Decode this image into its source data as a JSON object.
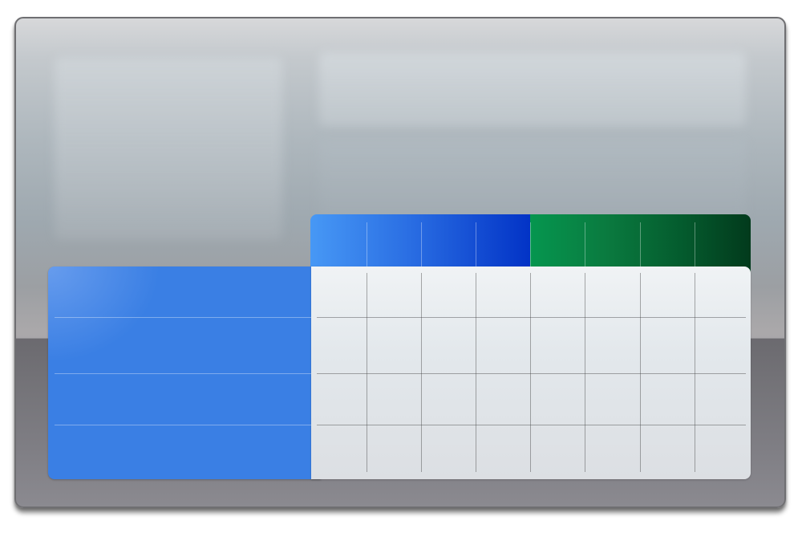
{
  "window": {
    "title": ""
  },
  "panels": {
    "sidebar_placeholder": "",
    "header_placeholder": "",
    "content_placeholder": ""
  },
  "table": {
    "column_groups": [
      {
        "name": "",
        "color_start": "#4798f5",
        "color_end": "#0233c6",
        "columns": 4
      },
      {
        "name": "",
        "color_start": "#05964f",
        "color_end": "#023a1c",
        "columns": 4
      }
    ],
    "row_header_color": "#3a7fe4",
    "rows": 4,
    "cells": [
      [
        "",
        "",
        "",
        "",
        "",
        "",
        "",
        ""
      ],
      [
        "",
        "",
        "",
        "",
        "",
        "",
        "",
        ""
      ],
      [
        "",
        "",
        "",
        "",
        "",
        "",
        "",
        ""
      ],
      [
        "",
        "",
        "",
        "",
        "",
        "",
        "",
        ""
      ]
    ]
  }
}
